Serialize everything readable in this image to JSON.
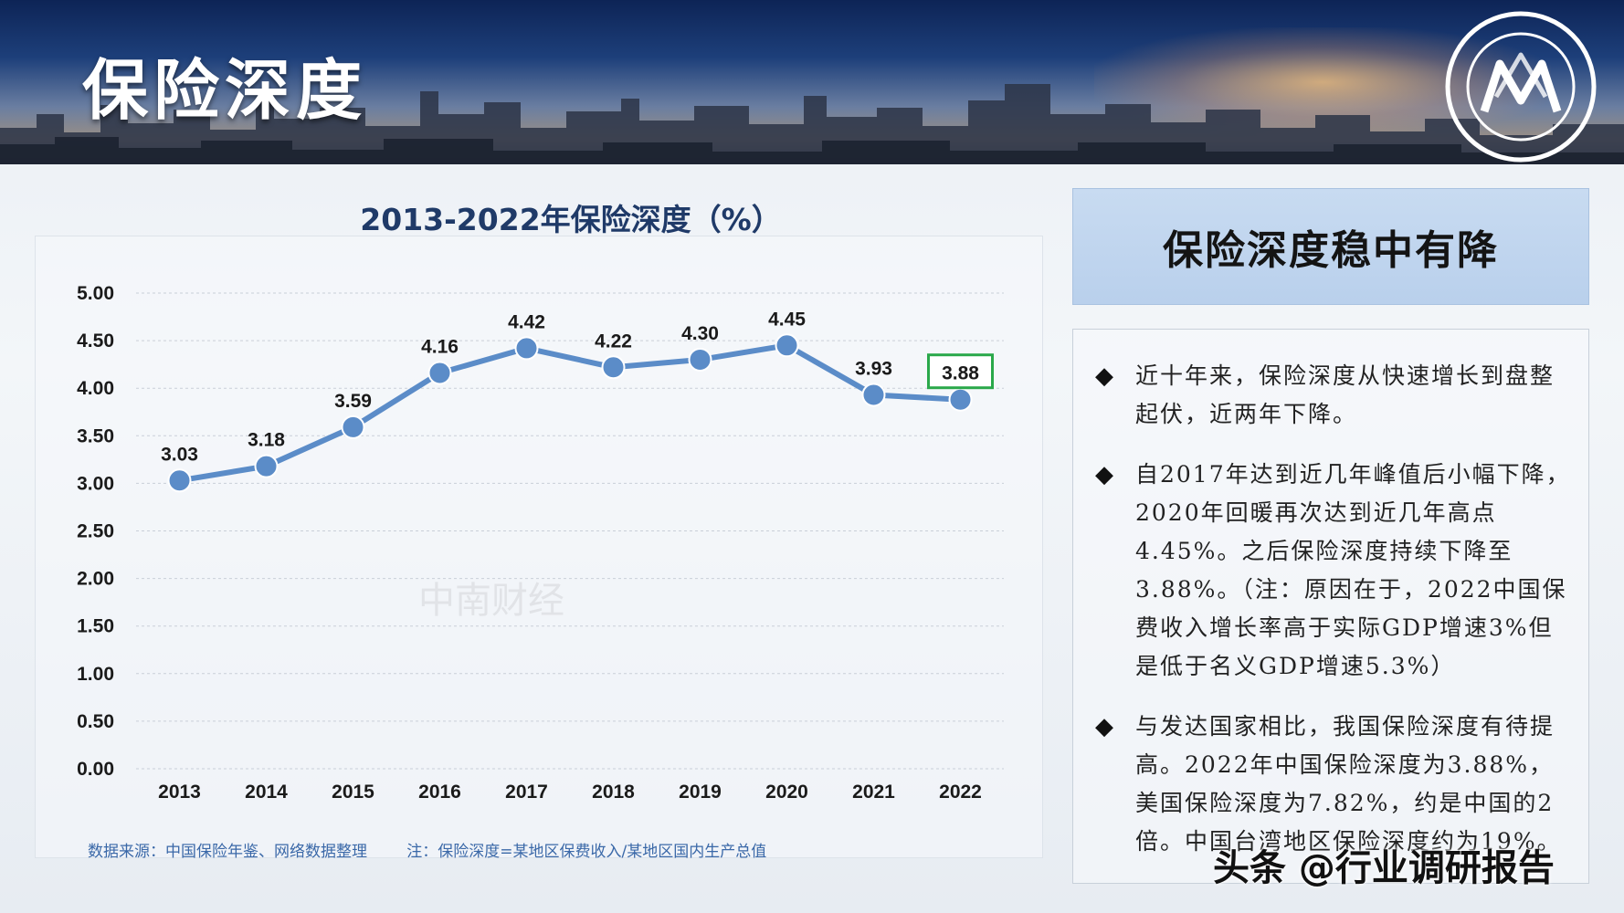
{
  "page": {
    "title": "保险深度",
    "side_header": "保险深度稳中有降",
    "bullets": [
      "近十年来，保险深度从快速增长到盘整起伏，近两年下降。",
      "自2017年达到近几年峰值后小幅下降，2020年回暖再次达到近几年高点4.45%。之后保险深度持续下降至3.88%。（注：原因在于，2022中国保费收入增长率高于实际GDP增速3%但是低于名义GDP增速5.3%）",
      "与发达国家相比，我国保险深度有待提高。2022年中国保险深度为3.88%，美国保险深度为7.82%，约是中国的2倍。中国台湾地区保险深度约为19%。"
    ],
    "footnote": "数据来源：中国保险年鉴、网络数据整理        注：保险深度=某地区保费收入/某地区国内生产总值",
    "watermark": "中南财经",
    "source_credit": "头条 @行业调研报告",
    "bullet_symbol": "◆"
  },
  "colors": {
    "line": "#5b8cc8",
    "highlight_box": "#2aa84a",
    "title": "#1f3a68"
  },
  "chart_data": {
    "type": "line",
    "title": "2013-2022年保险深度（%）",
    "x": [
      "2013",
      "2014",
      "2015",
      "2016",
      "2017",
      "2018",
      "2019",
      "2020",
      "2021",
      "2022"
    ],
    "series": [
      {
        "values": [
          3.03,
          3.18,
          3.59,
          4.16,
          4.42,
          4.22,
          4.3,
          4.45,
          3.93,
          3.88
        ]
      }
    ],
    "data_labels": [
      "3.03",
      "3.18",
      "3.59",
      "4.16",
      "4.42",
      "4.22",
      "4.30",
      "4.45",
      "3.93",
      "3.88"
    ],
    "yticks": [
      "0.00",
      "0.50",
      "1.00",
      "1.50",
      "2.00",
      "2.50",
      "3.00",
      "3.50",
      "4.00",
      "4.50",
      "5.00"
    ],
    "ylim": [
      0,
      5
    ],
    "grid": true,
    "legend": "none",
    "highlighted_point": 9
  }
}
